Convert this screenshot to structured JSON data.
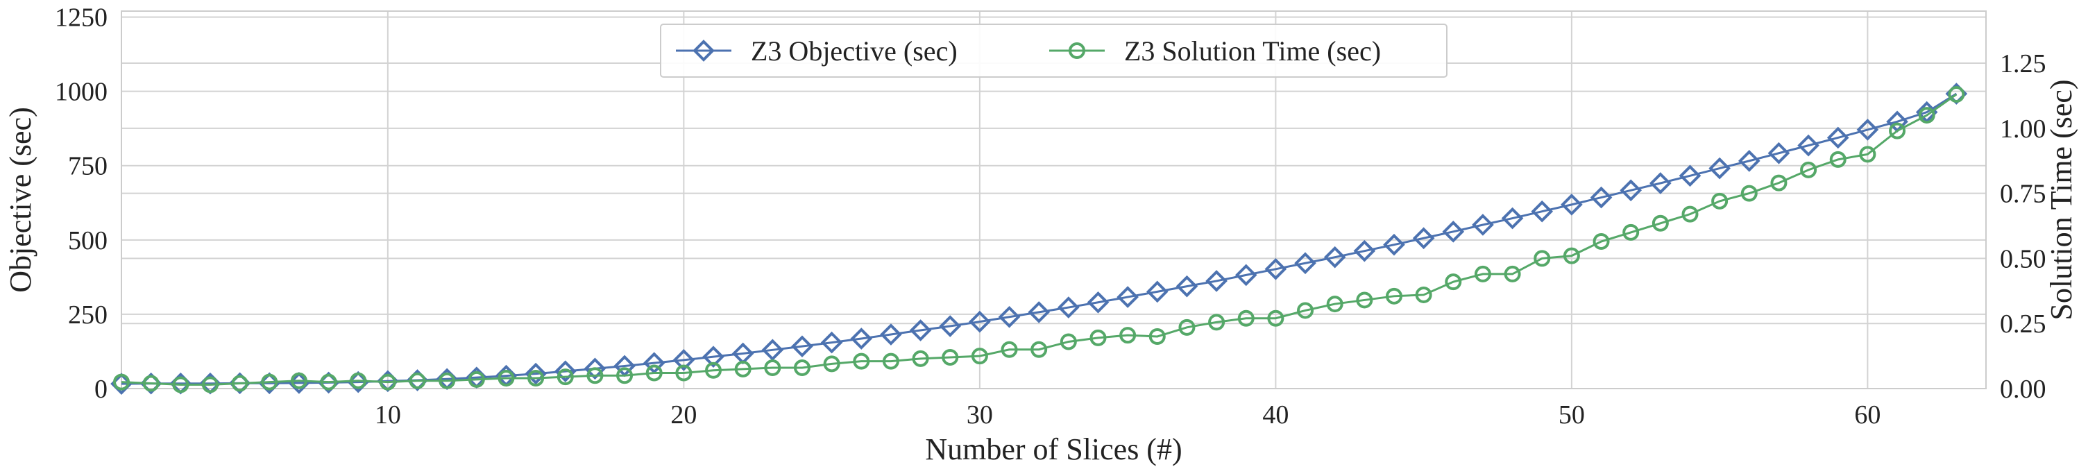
{
  "chart_data": {
    "type": "line",
    "xlabel": "Number of Slices (#)",
    "ylabel": "Objective (sec)",
    "ylabel_right": "Solution Time (sec)",
    "xlim": [
      1,
      64
    ],
    "ylim": [
      0,
      1270
    ],
    "ylim_right": [
      0,
      1.45
    ],
    "x_ticks": [
      10,
      20,
      30,
      40,
      50,
      60
    ],
    "y_ticks": [
      0,
      250,
      500,
      750,
      1000,
      1250
    ],
    "y_ticks_right": [
      "0.00",
      "0.25",
      "0.50",
      "0.75",
      "1.00",
      "1.25"
    ],
    "grid": true,
    "legend_position": "top-center",
    "x": [
      1,
      2,
      3,
      4,
      5,
      6,
      7,
      8,
      9,
      10,
      11,
      12,
      13,
      14,
      15,
      16,
      17,
      18,
      19,
      20,
      21,
      22,
      23,
      24,
      25,
      26,
      27,
      28,
      29,
      30,
      31,
      32,
      33,
      34,
      35,
      36,
      37,
      38,
      39,
      40,
      41,
      42,
      43,
      44,
      45,
      46,
      47,
      48,
      49,
      50,
      51,
      52,
      53,
      54,
      55,
      56,
      57,
      58,
      59,
      60,
      61,
      62,
      63
    ],
    "series": [
      {
        "name": "Z3 Objective (sec)",
        "axis": "left",
        "color": "#4c72b0",
        "marker": "diamond",
        "values": [
          16,
          17,
          17,
          17,
          18,
          18,
          19,
          20,
          22,
          25,
          28,
          32,
          37,
          43,
          50,
          58,
          67,
          76,
          86,
          96,
          107,
          118,
          130,
          142,
          155,
          168,
          182,
          196,
          210,
          225,
          241,
          257,
          273,
          290,
          308,
          326,
          344,
          362,
          382,
          402,
          422,
          442,
          463,
          484,
          506,
          528,
          551,
          573,
          596,
          619,
          643,
          667,
          691,
          716,
          741,
          766,
          792,
          818,
          844,
          871,
          898,
          930,
          992
        ]
      },
      {
        "name": "Z3 Solution Time (sec)",
        "axis": "right",
        "color": "#55a868",
        "marker": "circle",
        "values": [
          0.025,
          0.02,
          0.015,
          0.015,
          0.02,
          0.025,
          0.03,
          0.025,
          0.03,
          0.025,
          0.03,
          0.03,
          0.035,
          0.04,
          0.04,
          0.045,
          0.05,
          0.05,
          0.06,
          0.06,
          0.07,
          0.075,
          0.08,
          0.08,
          0.095,
          0.105,
          0.105,
          0.115,
          0.12,
          0.125,
          0.15,
          0.15,
          0.18,
          0.195,
          0.205,
          0.2,
          0.235,
          0.255,
          0.27,
          0.27,
          0.3,
          0.325,
          0.34,
          0.355,
          0.36,
          0.41,
          0.44,
          0.44,
          0.5,
          0.51,
          0.565,
          0.6,
          0.635,
          0.67,
          0.72,
          0.75,
          0.79,
          0.84,
          0.88,
          0.9,
          0.99,
          1.05,
          1.13
        ]
      }
    ]
  }
}
